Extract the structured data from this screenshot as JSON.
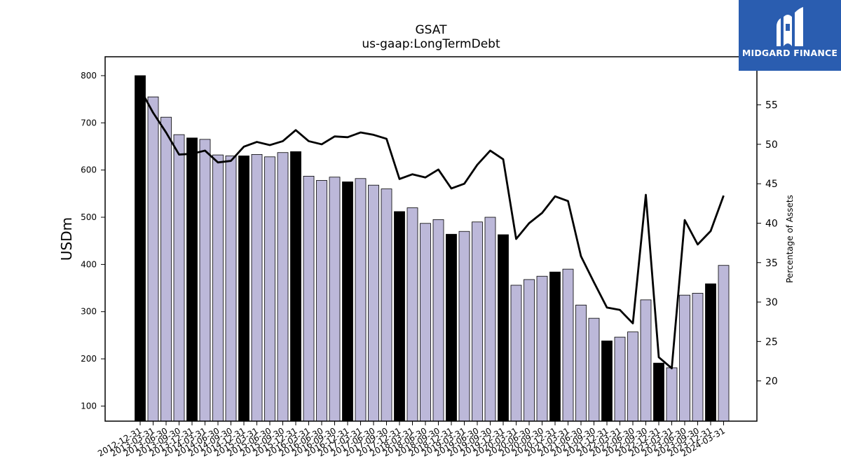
{
  "chart_data": {
    "type": "bar",
    "title": "GSAT",
    "subtitle": "us-gaap:LongTermDebt",
    "ylabel": "USDm",
    "y2label": "Percentage of Assets",
    "ylim": [
      68,
      840
    ],
    "y2lim": [
      14.9,
      61.1
    ],
    "yticks": [
      100,
      200,
      300,
      400,
      500,
      600,
      700,
      800
    ],
    "y2ticks": [
      20,
      25,
      30,
      35,
      40,
      45,
      50,
      55
    ],
    "categories": [
      "2012-12-31",
      "2013-03-31",
      "2013-06-30",
      "2013-09-30",
      "2013-12-31",
      "2014-03-31",
      "2014-06-30",
      "2014-09-30",
      "2014-12-31",
      "2015-03-31",
      "2015-06-30",
      "2015-09-30",
      "2015-12-31",
      "2016-03-31",
      "2016-06-30",
      "2016-09-30",
      "2016-12-31",
      "2017-03-31",
      "2017-06-30",
      "2017-09-30",
      "2017-12-31",
      "2018-03-31",
      "2018-06-30",
      "2018-09-30",
      "2018-12-31",
      "2019-03-31",
      "2019-06-30",
      "2019-09-30",
      "2019-12-31",
      "2020-03-31",
      "2020-06-30",
      "2020-09-30",
      "2020-12-31",
      "2021-03-31",
      "2021-06-30",
      "2021-09-30",
      "2021-12-31",
      "2022-03-31",
      "2022-06-30",
      "2022-09-30",
      "2022-12-31",
      "2023-03-31",
      "2023-06-30",
      "2023-09-30",
      "2023-12-31",
      "2024-03-31"
    ],
    "series": [
      {
        "kind": "bar",
        "values": [
          800,
          755,
          712,
          675,
          668,
          665,
          632,
          630,
          630,
          633,
          628,
          637,
          639,
          587,
          578,
          585,
          575,
          582,
          568,
          560,
          512,
          520,
          487,
          495,
          464,
          470,
          490,
          500,
          463,
          356,
          368,
          375,
          384,
          390,
          314,
          286,
          238,
          246,
          257,
          325,
          191,
          181,
          335,
          339,
          359,
          398
        ],
        "highlight": [
          true,
          false,
          false,
          false,
          true,
          false,
          false,
          false,
          true,
          false,
          false,
          false,
          true,
          false,
          false,
          false,
          true,
          false,
          false,
          false,
          true,
          false,
          false,
          false,
          true,
          false,
          false,
          false,
          true,
          false,
          false,
          false,
          true,
          false,
          false,
          false,
          true,
          false,
          false,
          false,
          true,
          false,
          false,
          false,
          true,
          false
        ],
        "color": "#bcb8d9",
        "highlight_color": "#000000"
      },
      {
        "kind": "line",
        "axis": "right",
        "values": [
          57.0,
          54.0,
          51.5,
          48.7,
          48.8,
          49.2,
          47.7,
          47.9,
          49.7,
          50.3,
          49.9,
          50.4,
          51.8,
          50.4,
          50.0,
          51.0,
          50.9,
          51.5,
          51.2,
          50.7,
          45.6,
          46.2,
          45.8,
          46.8,
          44.4,
          45.0,
          47.4,
          49.2,
          48.1,
          38.0,
          40.0,
          41.3,
          43.4,
          42.8,
          35.8,
          32.5,
          29.3,
          29.0,
          27.3,
          43.6,
          23.0,
          21.6,
          40.4,
          37.3,
          39.0,
          43.5
        ],
        "color": "#000000"
      }
    ]
  },
  "logo": {
    "text": "MIDGARD FINANCE"
  }
}
